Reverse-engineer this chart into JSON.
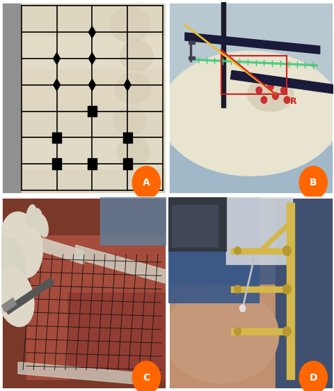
{
  "labels": [
    "A",
    "B",
    "C",
    "D"
  ],
  "label_color": "#FF6600",
  "label_text_color": "#FFFFFF",
  "label_fontsize": 10,
  "label_fontweight": "bold",
  "figsize": [
    4.81,
    5.61
  ],
  "dpi": 100,
  "border_linewidth": 2,
  "panel_A_bg": "#c8c0a8",
  "panel_B_bg": "#b8c8d0",
  "panel_C_bg": "#8b4030",
  "panel_D_bg": "#607898",
  "grid_color_A": "#000000",
  "grid_color_C": "#1a1a1a",
  "white_border": "#ffffff",
  "hspace": 0.015,
  "wspace": 0.015
}
